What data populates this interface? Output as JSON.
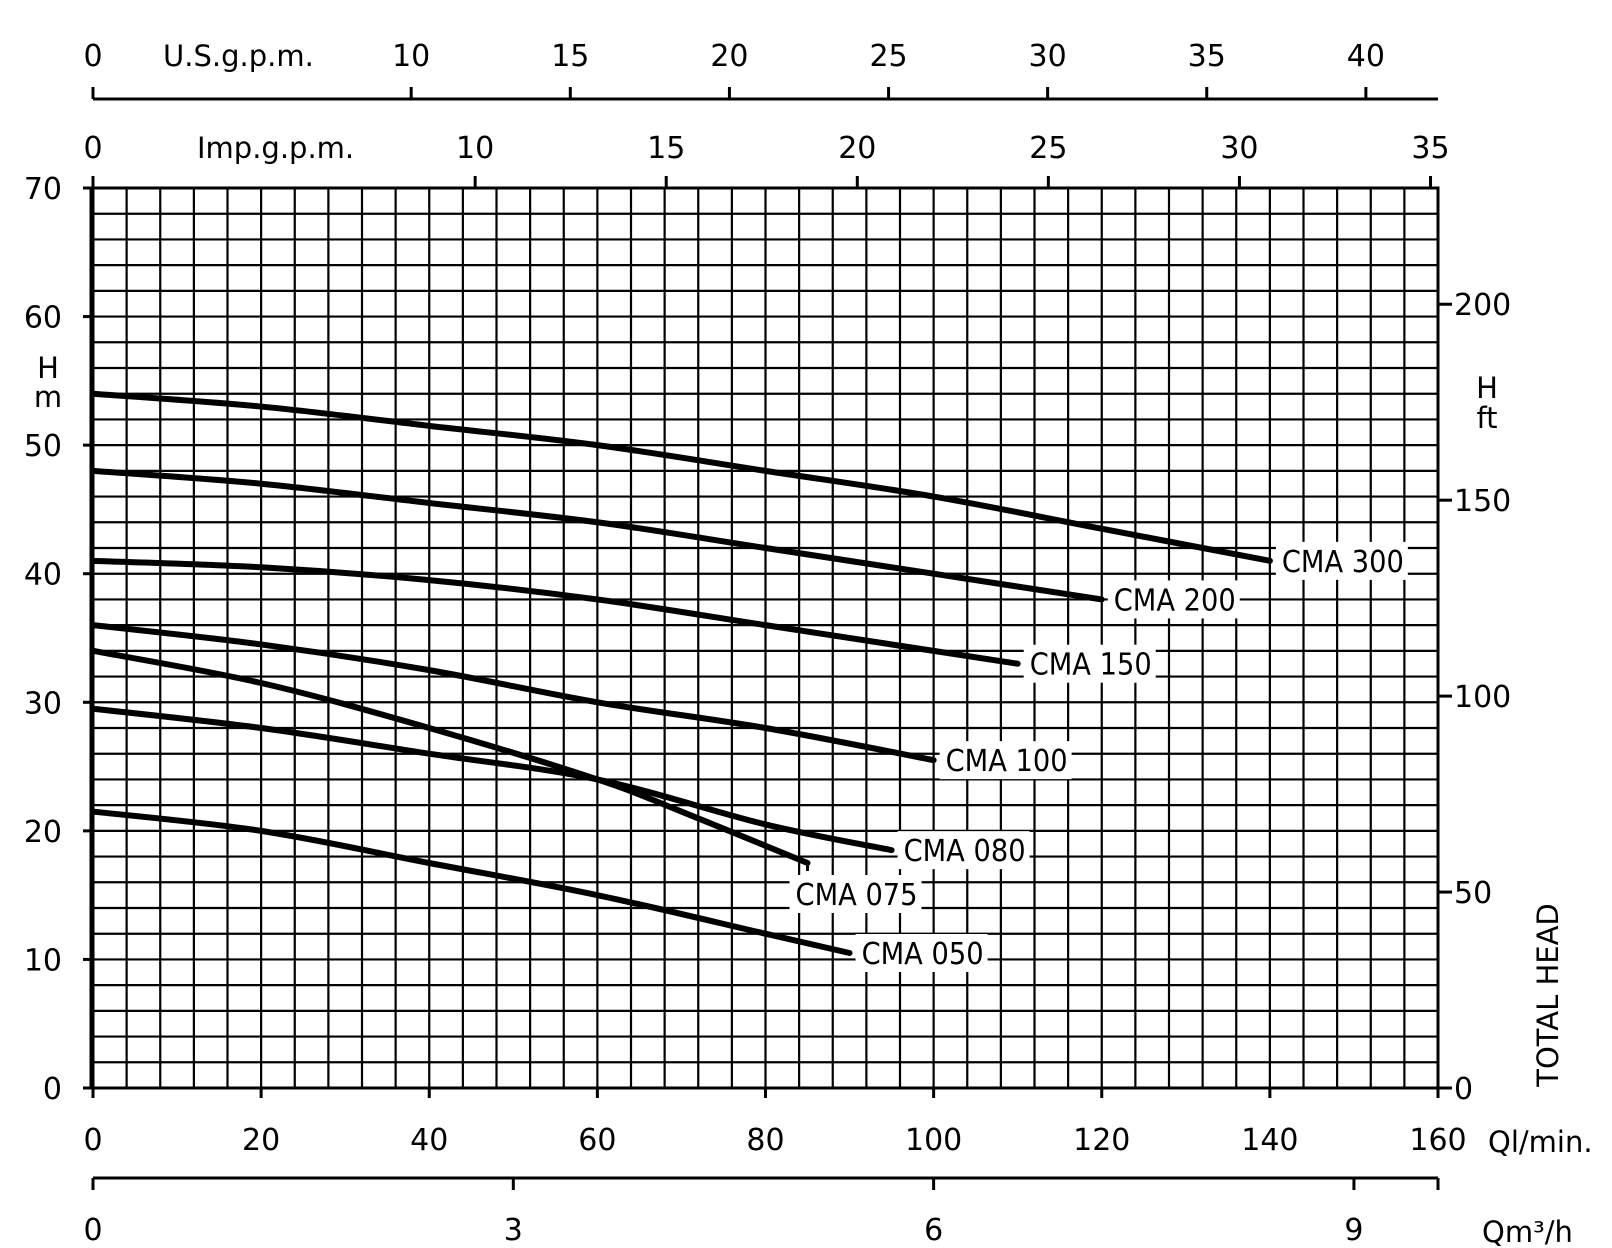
{
  "chart_data": {
    "type": "line",
    "title": "",
    "xlabel": "Ql/min.",
    "ylabel": "H m",
    "xlim": [
      0,
      160
    ],
    "ylim": [
      0,
      70
    ],
    "x_ticks": [
      0,
      20,
      40,
      60,
      80,
      100,
      120,
      140,
      160
    ],
    "y_ticks": [
      0,
      10,
      20,
      30,
      40,
      50,
      60,
      70
    ],
    "grid": true,
    "axes": {
      "y_unit_top": "H",
      "y_unit_bottom": "m",
      "right_unit_top": "H",
      "right_unit_bottom": "ft",
      "right_title": "TOTAL HEAD",
      "right_ticks": [
        {
          "label": "0",
          "value": 0
        },
        {
          "label": "50",
          "value": 15.24
        },
        {
          "label": "100",
          "value": 30.48
        },
        {
          "label": "150",
          "value": 45.72
        },
        {
          "label": "200",
          "value": 60.96
        }
      ],
      "top_usgpm_label": "U.S.g.p.m.",
      "top_usgpm_ticks": [
        {
          "label": "0",
          "value": 0
        },
        {
          "label": "10",
          "value": 37.85
        },
        {
          "label": "15",
          "value": 56.78
        },
        {
          "label": "20",
          "value": 75.71
        },
        {
          "label": "25",
          "value": 94.64
        },
        {
          "label": "30",
          "value": 113.56
        },
        {
          "label": "35",
          "value": 132.49
        },
        {
          "label": "40",
          "value": 151.42
        }
      ],
      "top_impgpm_label": "Imp.g.p.m.",
      "top_impgpm_ticks": [
        {
          "label": "0",
          "value": 0
        },
        {
          "label": "10",
          "value": 45.46
        },
        {
          "label": "15",
          "value": 68.19
        },
        {
          "label": "20",
          "value": 90.92
        },
        {
          "label": "25",
          "value": 113.65
        },
        {
          "label": "30",
          "value": 136.38
        },
        {
          "label": "35",
          "value": 159.11
        }
      ],
      "bottom_m3h_label": "Qm³/h",
      "bottom_m3h_ticks": [
        {
          "label": "0",
          "value": 0
        },
        {
          "label": "3",
          "value": 50
        },
        {
          "label": "6",
          "value": 100
        },
        {
          "label": "9",
          "value": 150
        }
      ]
    },
    "series": [
      {
        "name": "CMA 300",
        "x": [
          0,
          20,
          40,
          60,
          80,
          100,
          120,
          140
        ],
        "y": [
          54,
          53,
          51.5,
          50,
          48,
          46,
          43.5,
          41
        ]
      },
      {
        "name": "CMA 200",
        "x": [
          0,
          20,
          40,
          60,
          80,
          100,
          120
        ],
        "y": [
          48,
          47,
          45.5,
          44,
          42,
          40,
          38
        ]
      },
      {
        "name": "CMA 150",
        "x": [
          0,
          20,
          40,
          60,
          80,
          100,
          110
        ],
        "y": [
          41,
          40.5,
          39.5,
          38,
          36,
          34,
          33
        ]
      },
      {
        "name": "CMA 100",
        "x": [
          0,
          20,
          40,
          60,
          80,
          100
        ],
        "y": [
          36,
          34.5,
          32.5,
          30,
          28,
          25.5
        ]
      },
      {
        "name": "CMA 080",
        "x": [
          0,
          20,
          40,
          60,
          80,
          95
        ],
        "y": [
          29.5,
          28,
          26,
          24,
          20.5,
          18.5
        ]
      },
      {
        "name": "CMA 075",
        "x": [
          0,
          20,
          40,
          60,
          70,
          85
        ],
        "y": [
          34,
          31.5,
          28,
          24,
          21.5,
          17.5
        ]
      },
      {
        "name": "CMA 050",
        "x": [
          0,
          20,
          40,
          60,
          80,
          90
        ],
        "y": [
          21.5,
          20,
          17.5,
          15,
          12,
          10.5
        ]
      }
    ]
  }
}
